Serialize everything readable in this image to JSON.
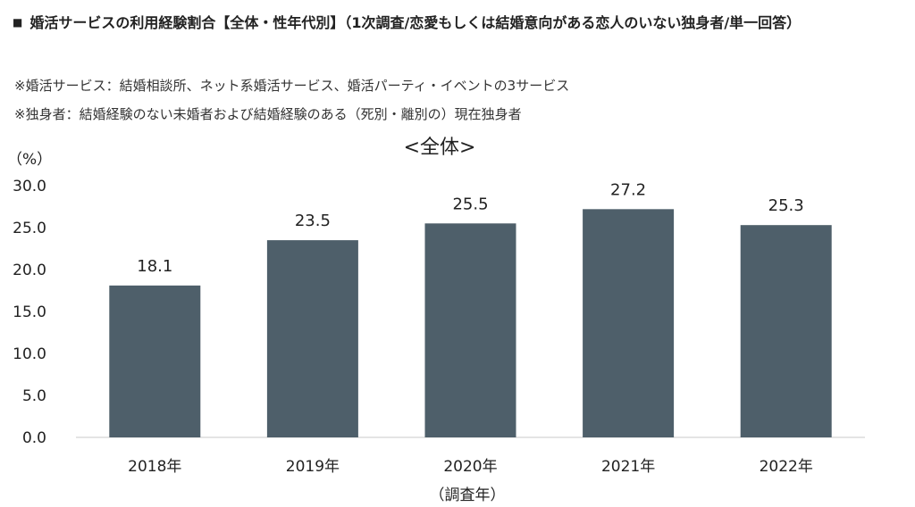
{
  "header": {
    "bullet": "■",
    "title": "婚活サービスの利用経験割合【全体・性年代別】（1次調査/恋愛もしくは結婚意向がある恋人のいない独身者/単一回答）"
  },
  "notes": [
    "※婚活サービス：結婚相談所、ネット系婚活サービス、婚活パーティ・イベントの3サービス",
    "※独身者：結婚経験のない未婚者および結婚経験のある（死別・離別の）現在独身者"
  ],
  "chart_data": {
    "type": "bar",
    "title": "<全体>",
    "ylabel": "（%）",
    "xlabel": "（調査年）",
    "categories": [
      "2018年",
      "2019年",
      "2020年",
      "2021年",
      "2022年"
    ],
    "values": [
      18.1,
      23.5,
      25.5,
      27.2,
      25.3
    ],
    "value_labels": [
      "18.1",
      "23.5",
      "25.5",
      "27.2",
      "25.3"
    ],
    "ylim": [
      0,
      30
    ],
    "yticks": [
      "0.0",
      "5.0",
      "10.0",
      "15.0",
      "20.0",
      "25.0",
      "30.0"
    ],
    "grid": false,
    "bar_color": "#4e5f6a"
  }
}
